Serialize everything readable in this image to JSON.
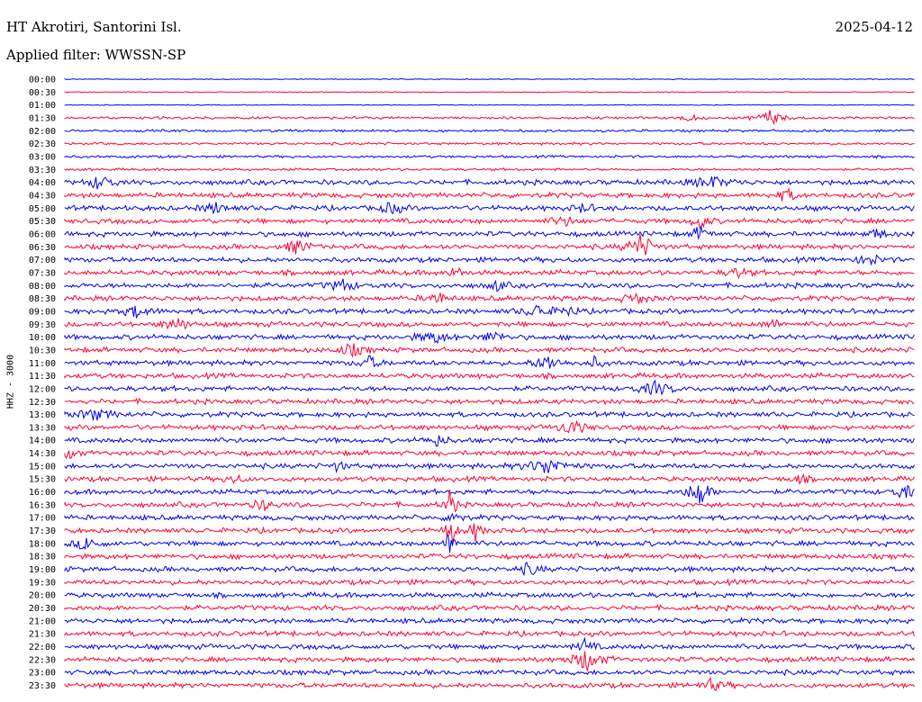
{
  "chart_data": {
    "type": "line",
    "title": "HT Akrotiri, Santorini Isl.",
    "subtitle": "Applied filter: WWSSN-SP",
    "date": "2025-04-12",
    "ylabel": "HHZ - 3000",
    "trace_labels": [
      "00:00",
      "00:30",
      "01:00",
      "01:30",
      "02:00",
      "02:30",
      "03:00",
      "03:30",
      "04:00",
      "04:30",
      "05:00",
      "05:30",
      "06:00",
      "06:30",
      "07:00",
      "07:30",
      "08:00",
      "08:30",
      "09:00",
      "09:30",
      "10:00",
      "10:30",
      "11:00",
      "11:30",
      "12:00",
      "12:30",
      "13:00",
      "13:30",
      "14:00",
      "14:30",
      "15:00",
      "15:30",
      "16:00",
      "16:30",
      "17:00",
      "17:30",
      "18:00",
      "18:30",
      "19:00",
      "19:30",
      "20:00",
      "20:30",
      "21:00",
      "21:30",
      "22:00",
      "22:30",
      "23:00",
      "23:30"
    ],
    "trace_colors": [
      "#0000ee",
      "#ff0033"
    ],
    "grid": false,
    "legend": "none"
  }
}
